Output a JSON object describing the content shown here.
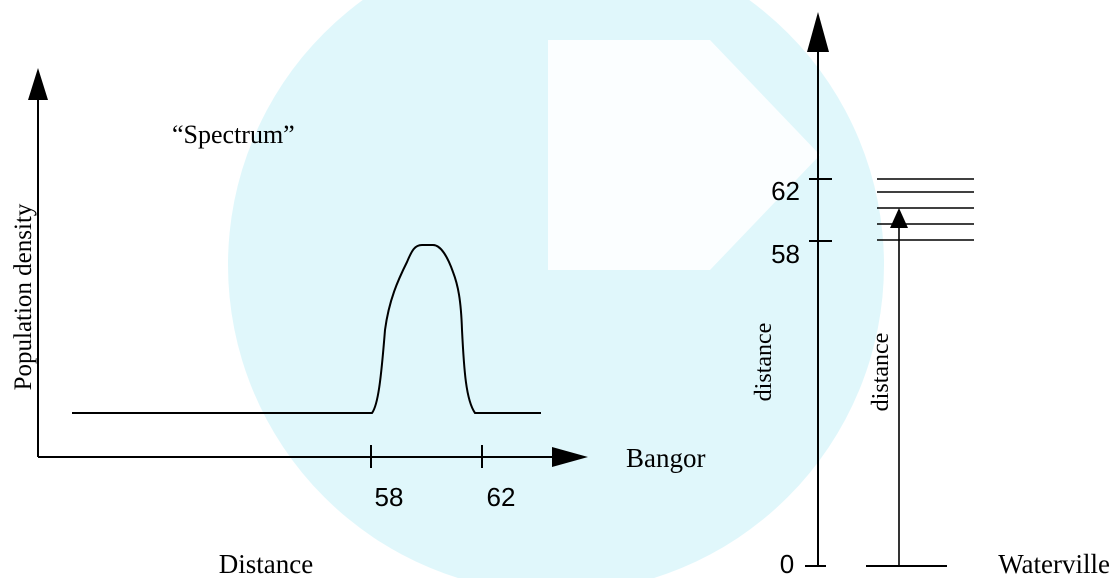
{
  "left_plot": {
    "title": "“Spectrum”",
    "y_label": "Population density",
    "x_label": "Distance",
    "x_axis_end_label": "Bangor",
    "tick_labels": [
      "58",
      "62"
    ]
  },
  "right_diagram": {
    "tick_labels": [
      "62",
      "58"
    ],
    "origin_label": "0",
    "axis_label": "distance",
    "arrow_label": "distance",
    "bottom_right_label": "Waterville"
  },
  "colors": {
    "watermark": "#e0f7fb",
    "line": "#000000"
  }
}
